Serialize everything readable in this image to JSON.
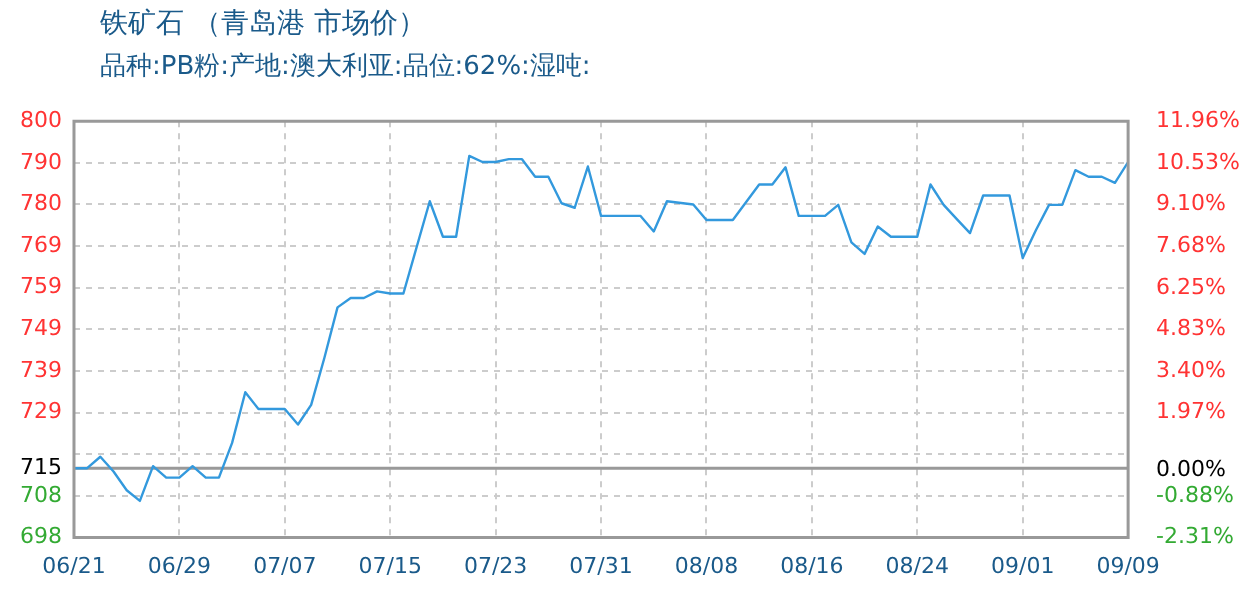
{
  "chart_data": {
    "type": "line",
    "title": "铁矿石 （青岛港 市场价）",
    "subtitle": "品种:PB粉:产地:澳大利亚:品位:62%:湿吨:",
    "x": [
      "--06-21",
      "--06-22",
      "--06-23",
      "--06-24",
      "--06-25",
      "--06-26",
      "--06-27",
      "--06-28",
      "--06-29",
      "--06-30",
      "--07-01",
      "--07-02",
      "--07-03",
      "--07-04",
      "--07-05",
      "--07-07",
      "--07-08",
      "--07-09",
      "--07-10",
      "--07-11",
      "--07-12",
      "--07-13",
      "--07-14",
      "--07-15",
      "--07-16",
      "--07-18",
      "--07-19",
      "--07-20",
      "--07-21",
      "--07-22",
      "--07-23",
      "--07-24",
      "--07-25",
      "--07-26",
      "--07-27",
      "--07-28",
      "--07-29",
      "--07-30",
      "--07-31",
      "--08-03",
      "--08-04",
      "--08-05",
      "--08-07",
      "--08-08",
      "--08-10",
      "--08-12",
      "--08-13",
      "--08-14",
      "--08-15",
      "--08-17",
      "--08-18",
      "--08-19",
      "--08-20",
      "--08-21",
      "--08-22",
      "--08-24",
      "--08-25",
      "--08-26",
      "--08-27",
      "--08-28",
      "--08-29",
      "--08-31",
      "--09-01",
      "--09-02",
      "--09-03",
      "--09-04",
      "--09-05",
      "--09-06",
      "--09-07",
      "--09-08",
      "--09-09"
    ],
    "series": [
      {
        "color": "#3399dd",
        "values": [
          715,
          715,
          717.8,
          714.2,
          709.6,
          707,
          715.5,
          712.7,
          712.7,
          715.5,
          712.7,
          712.7,
          721.2,
          733.6,
          729.5,
          729.5,
          725.7,
          730.5,
          742,
          754.4,
          756.7,
          756.7,
          758.3,
          757.8,
          757.8,
          780.4,
          771.7,
          771.7,
          791.5,
          790,
          790,
          790.7,
          790.7,
          786.4,
          786.4,
          779.9,
          778.8,
          788.9,
          776.8,
          776.8,
          773,
          780.4,
          779.6,
          775.8,
          775.8,
          784.5,
          784.5,
          788.7,
          776.8,
          776.8,
          779.5,
          770.3,
          767.5,
          774.2,
          771.7,
          771.7,
          784.5,
          779.5,
          776,
          772.6,
          781.8,
          781.8,
          766.5,
          773.3,
          779.5,
          779.5,
          788,
          786.4,
          786.4,
          784.9,
          790
        ]
      }
    ],
    "xlim": [
      "--06-21",
      "--09-09"
    ],
    "xticks": [
      {
        "value": "--06-21",
        "label": "06/21"
      },
      {
        "value": "--06-29",
        "label": "06/29"
      },
      {
        "value": "--07-07",
        "label": "07/07"
      },
      {
        "value": "--07-15",
        "label": "07/15"
      },
      {
        "value": "--07-23",
        "label": "07/23"
      },
      {
        "value": "--07-31",
        "label": "07/31"
      },
      {
        "value": "--08-08",
        "label": "08/08"
      },
      {
        "value": "--08-16",
        "label": "08/16"
      },
      {
        "value": "--08-24",
        "label": "08/24"
      },
      {
        "value": "--09-01",
        "label": "09/01"
      },
      {
        "value": "--09-09",
        "label": "09/09"
      }
    ],
    "ylim": [
      698,
      800
    ],
    "yticks": [
      800,
      {
        "value": 789.8,
        "label": "790"
      },
      {
        "value": 779.6,
        "label": "780"
      },
      {
        "value": 769.4,
        "label": "769"
      },
      {
        "value": 759.2,
        "label": "759"
      },
      749,
      {
        "value": 738.8,
        "label": "739"
      },
      {
        "value": 728.6,
        "label": "729"
      },
      {
        "value": 718.4,
        "label": null
      },
      715,
      {
        "value": 708.2,
        "label": "708"
      },
      698
    ],
    "y2lim": [
      -2.31,
      11.96
    ],
    "y2ticks": [
      {
        "value": 11.96,
        "label": "11.96%"
      },
      {
        "value": 10.53,
        "label": "10.53%"
      },
      {
        "value": 9.1,
        "label": "9.10%"
      },
      {
        "value": 7.68,
        "label": "7.68%"
      },
      {
        "value": 6.25,
        "label": "6.25%"
      },
      {
        "value": 4.83,
        "label": "4.83%"
      },
      {
        "value": 3.4,
        "label": "3.40%"
      },
      {
        "value": 1.97,
        "label": "1.97%"
      },
      {
        "value": 0,
        "label": "0.00%"
      },
      {
        "value": -0.88,
        "label": "-0.88%"
      },
      {
        "value": -2.31,
        "label": "-2.31%"
      }
    ],
    "ref_lines": [
      {
        "axis": "y",
        "value": 715,
        "color": "#999999"
      }
    ],
    "grid": true,
    "legend": false,
    "marker": "none"
  }
}
